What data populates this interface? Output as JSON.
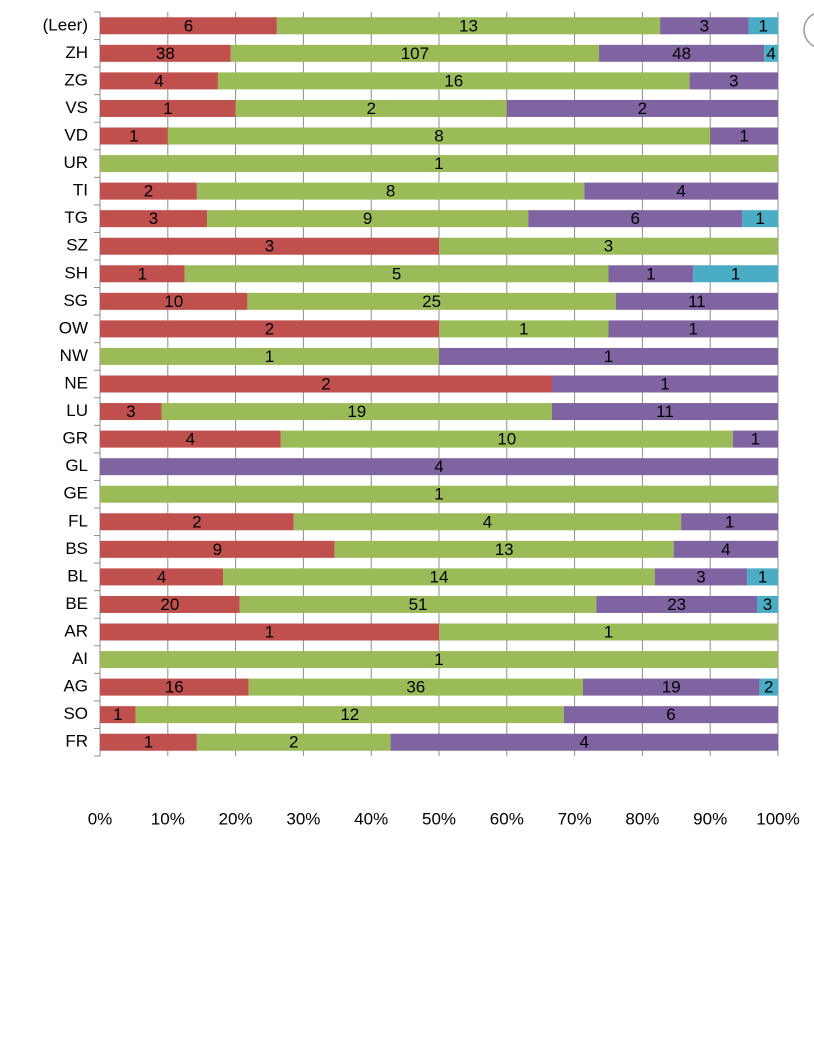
{
  "chart_data": {
    "type": "bar",
    "orientation": "horizontal",
    "stack": "percent",
    "categories": [
      "(Leer)",
      "ZH",
      "ZG",
      "VS",
      "VD",
      "UR",
      "TI",
      "TG",
      "SZ",
      "SH",
      "SG",
      "OW",
      "NW",
      "NE",
      "LU",
      "GR",
      "GL",
      "GE",
      "FL",
      "BS",
      "BL",
      "BE",
      "AR",
      "AI",
      "AG",
      "SO",
      "FR"
    ],
    "series": [
      {
        "color": "#c0504d",
        "values": [
          6,
          38,
          4,
          1,
          1,
          null,
          2,
          3,
          3,
          1,
          10,
          2,
          null,
          2,
          3,
          4,
          null,
          null,
          2,
          9,
          4,
          20,
          1,
          null,
          16,
          1,
          1
        ]
      },
      {
        "color": "#9bbb59",
        "values": [
          13,
          107,
          16,
          2,
          8,
          1,
          8,
          9,
          3,
          5,
          25,
          1,
          1,
          null,
          19,
          10,
          null,
          1,
          4,
          13,
          14,
          51,
          1,
          1,
          36,
          12,
          2
        ]
      },
      {
        "color": "#8064a2",
        "values": [
          3,
          48,
          3,
          2,
          1,
          null,
          4,
          6,
          null,
          1,
          11,
          1,
          1,
          1,
          11,
          1,
          4,
          null,
          1,
          4,
          3,
          23,
          null,
          null,
          19,
          6,
          4
        ]
      },
      {
        "color": "#4bacc6",
        "values": [
          1,
          4,
          null,
          null,
          null,
          null,
          null,
          1,
          null,
          1,
          null,
          null,
          null,
          null,
          null,
          null,
          null,
          null,
          null,
          null,
          1,
          3,
          null,
          null,
          2,
          null,
          null
        ]
      }
    ],
    "xlim": [
      0,
      100
    ],
    "xticks": [
      {
        "value": 0,
        "label": "0%"
      },
      {
        "value": 10,
        "label": "10%"
      },
      {
        "value": 20,
        "label": "20%"
      },
      {
        "value": 30,
        "label": "30%"
      },
      {
        "value": 40,
        "label": "40%"
      },
      {
        "value": 50,
        "label": "50%"
      },
      {
        "value": 60,
        "label": "60%"
      },
      {
        "value": 70,
        "label": "70%"
      },
      {
        "value": 80,
        "label": "80%"
      },
      {
        "value": 90,
        "label": "90%"
      },
      {
        "value": 100,
        "label": "100%"
      }
    ],
    "grid": true
  }
}
